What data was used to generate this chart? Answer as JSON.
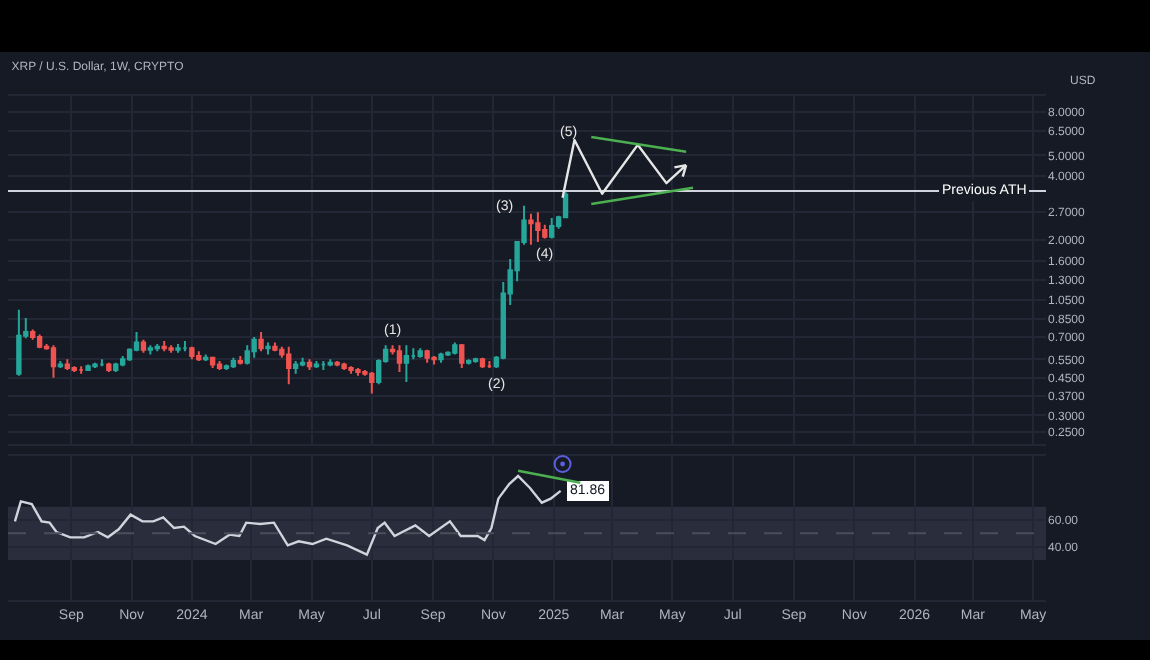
{
  "chart_data": [
    {
      "type": "candlestick",
      "title": "XRP / U.S. Dollar, 1W, CRYPTO",
      "log": true,
      "grid": true,
      "tick_labels": "y",
      "x": [
        "2023-07-10",
        "2023-07-17",
        "2023-07-24",
        "2023-07-31",
        "2023-08-07",
        "2023-08-14",
        "2023-08-21",
        "2023-08-28",
        "2023-09-04",
        "2023-09-11",
        "2023-09-18",
        "2023-09-25",
        "2023-10-02",
        "2023-10-09",
        "2023-10-16",
        "2023-10-23",
        "2023-10-30",
        "2023-11-06",
        "2023-11-13",
        "2023-11-20",
        "2023-11-27",
        "2023-12-04",
        "2023-12-11",
        "2023-12-18",
        "2023-12-25",
        "2024-01-01",
        "2024-01-08",
        "2024-01-15",
        "2024-01-22",
        "2024-01-29",
        "2024-02-05",
        "2024-02-12",
        "2024-02-19",
        "2024-02-26",
        "2024-03-04",
        "2024-03-11",
        "2024-03-18",
        "2024-03-25",
        "2024-04-01",
        "2024-04-08",
        "2024-04-15",
        "2024-04-22",
        "2024-04-29",
        "2024-05-06",
        "2024-05-13",
        "2024-05-20",
        "2024-05-27",
        "2024-06-03",
        "2024-06-10",
        "2024-06-17",
        "2024-06-24",
        "2024-07-01",
        "2024-07-08",
        "2024-07-15",
        "2024-07-22",
        "2024-07-29",
        "2024-08-05",
        "2024-08-12",
        "2024-08-19",
        "2024-08-26",
        "2024-09-02",
        "2024-09-09",
        "2024-09-16",
        "2024-09-23",
        "2024-09-30",
        "2024-10-07",
        "2024-10-14",
        "2024-10-21",
        "2024-10-28",
        "2024-11-04",
        "2024-11-11",
        "2024-11-18",
        "2024-11-25",
        "2024-12-02",
        "2024-12-09",
        "2024-12-16",
        "2024-12-23",
        "2024-12-30",
        "2025-01-06",
        "2025-01-13"
      ],
      "xticks": [
        {
          "value": "2023-09-01",
          "label": null
        },
        {
          "value": "2023-11-01",
          "label": null
        },
        {
          "value": "2024-01-01",
          "label": null
        },
        {
          "value": "2024-03-01",
          "label": null
        },
        {
          "value": "2024-05-01",
          "label": null
        },
        {
          "value": "2024-07-01",
          "label": null
        },
        {
          "value": "2024-09-01",
          "label": null
        },
        {
          "value": "2024-11-01",
          "label": null
        },
        {
          "value": "2025-01-01",
          "label": null
        },
        {
          "value": "2025-03-01",
          "label": null
        },
        {
          "value": "2025-05-01",
          "label": null
        },
        {
          "value": "2025-07-01",
          "label": null
        },
        {
          "value": "2025-09-01",
          "label": null
        },
        {
          "value": "2025-11-01",
          "label": null
        },
        {
          "value": "2026-01-01",
          "label": null
        },
        {
          "value": "2026-03-01",
          "label": null
        },
        {
          "value": "2026-05-01",
          "label": null
        }
      ],
      "ohlc": [
        [
          0.47,
          0.94,
          0.46,
          0.71
        ],
        [
          0.71,
          0.86,
          0.69,
          0.74
        ],
        [
          0.74,
          0.76,
          0.68,
          0.7
        ],
        [
          0.7,
          0.72,
          0.62,
          0.63
        ],
        [
          0.63,
          0.65,
          0.61,
          0.62
        ],
        [
          0.62,
          0.64,
          0.45,
          0.51
        ],
        [
          0.51,
          0.54,
          0.5,
          0.52
        ],
        [
          0.52,
          0.55,
          0.49,
          0.5
        ],
        [
          0.5,
          0.51,
          0.48,
          0.49
        ],
        [
          0.49,
          0.51,
          0.47,
          0.49
        ],
        [
          0.49,
          0.52,
          0.49,
          0.51
        ],
        [
          0.51,
          0.53,
          0.5,
          0.52
        ],
        [
          0.52,
          0.55,
          0.51,
          0.52
        ],
        [
          0.52,
          0.53,
          0.48,
          0.49
        ],
        [
          0.49,
          0.53,
          0.48,
          0.52
        ],
        [
          0.52,
          0.57,
          0.51,
          0.55
        ],
        [
          0.55,
          0.62,
          0.54,
          0.61
        ],
        [
          0.61,
          0.74,
          0.6,
          0.66
        ],
        [
          0.66,
          0.68,
          0.59,
          0.61
        ],
        [
          0.61,
          0.64,
          0.58,
          0.62
        ],
        [
          0.62,
          0.65,
          0.6,
          0.63
        ],
        [
          0.63,
          0.67,
          0.6,
          0.62
        ],
        [
          0.62,
          0.64,
          0.59,
          0.61
        ],
        [
          0.61,
          0.65,
          0.59,
          0.62
        ],
        [
          0.62,
          0.67,
          0.6,
          0.62
        ],
        [
          0.62,
          0.63,
          0.55,
          0.57
        ],
        [
          0.57,
          0.6,
          0.54,
          0.55
        ],
        [
          0.55,
          0.58,
          0.54,
          0.56
        ],
        [
          0.56,
          0.56,
          0.5,
          0.52
        ],
        [
          0.52,
          0.54,
          0.49,
          0.5
        ],
        [
          0.5,
          0.52,
          0.49,
          0.51
        ],
        [
          0.51,
          0.56,
          0.5,
          0.54
        ],
        [
          0.54,
          0.57,
          0.52,
          0.53
        ],
        [
          0.53,
          0.64,
          0.52,
          0.6
        ],
        [
          0.6,
          0.7,
          0.56,
          0.68
        ],
        [
          0.68,
          0.74,
          0.6,
          0.62
        ],
        [
          0.62,
          0.66,
          0.58,
          0.63
        ],
        [
          0.63,
          0.66,
          0.6,
          0.61
        ],
        [
          0.61,
          0.63,
          0.56,
          0.58
        ],
        [
          0.58,
          0.63,
          0.42,
          0.5
        ],
        [
          0.5,
          0.54,
          0.47,
          0.52
        ],
        [
          0.52,
          0.56,
          0.51,
          0.53
        ],
        [
          0.53,
          0.55,
          0.49,
          0.51
        ],
        [
          0.51,
          0.54,
          0.5,
          0.52
        ],
        [
          0.52,
          0.54,
          0.49,
          0.52
        ],
        [
          0.52,
          0.55,
          0.51,
          0.53
        ],
        [
          0.53,
          0.54,
          0.51,
          0.52
        ],
        [
          0.52,
          0.53,
          0.49,
          0.5
        ],
        [
          0.5,
          0.51,
          0.47,
          0.49
        ],
        [
          0.49,
          0.5,
          0.46,
          0.48
        ],
        [
          0.48,
          0.49,
          0.46,
          0.47
        ],
        [
          0.47,
          0.48,
          0.38,
          0.43
        ],
        [
          0.43,
          0.55,
          0.42,
          0.54
        ],
        [
          0.54,
          0.64,
          0.53,
          0.61
        ],
        [
          0.61,
          0.64,
          0.58,
          0.6
        ],
        [
          0.6,
          0.64,
          0.48,
          0.53
        ],
        [
          0.53,
          0.64,
          0.43,
          0.57
        ],
        [
          0.57,
          0.62,
          0.55,
          0.57
        ],
        [
          0.57,
          0.62,
          0.56,
          0.6
        ],
        [
          0.6,
          0.61,
          0.53,
          0.56
        ],
        [
          0.56,
          0.57,
          0.52,
          0.55
        ],
        [
          0.55,
          0.59,
          0.53,
          0.58
        ],
        [
          0.58,
          0.6,
          0.57,
          0.59
        ],
        [
          0.59,
          0.66,
          0.58,
          0.64
        ],
        [
          0.64,
          0.65,
          0.5,
          0.53
        ],
        [
          0.53,
          0.55,
          0.52,
          0.54
        ],
        [
          0.54,
          0.56,
          0.53,
          0.55
        ],
        [
          0.55,
          0.56,
          0.5,
          0.51
        ],
        [
          0.51,
          0.54,
          0.5,
          0.51
        ],
        [
          0.51,
          0.57,
          0.5,
          0.56
        ],
        [
          0.56,
          1.27,
          0.55,
          1.12
        ],
        [
          1.12,
          1.63,
          0.99,
          1.44
        ],
        [
          1.44,
          1.98,
          1.28,
          1.96
        ],
        [
          1.96,
          2.9,
          1.9,
          2.47
        ],
        [
          2.47,
          2.66,
          1.9,
          2.4
        ],
        [
          2.4,
          2.7,
          1.96,
          2.23
        ],
        [
          2.23,
          2.36,
          2.03,
          2.07
        ],
        [
          2.07,
          2.54,
          2.03,
          2.33
        ],
        [
          2.33,
          2.6,
          2.26,
          2.56
        ],
        [
          2.56,
          3.4,
          2.53,
          3.27
        ]
      ],
      "xlim": [
        "2023-06-29",
        "2026-05-14"
      ],
      "ylim": [
        0.22,
        9.5
      ],
      "yticks": [
        {
          "value": 8,
          "label": "8.0000"
        },
        {
          "value": 6.5,
          "label": "6.5000"
        },
        {
          "value": 5,
          "label": "5.0000"
        },
        {
          "value": 4,
          "label": "4.0000"
        },
        {
          "value": 2.7,
          "label": "2.7000"
        },
        {
          "value": 2,
          "label": "2.0000"
        },
        {
          "value": 1.6,
          "label": "1.6000"
        },
        {
          "value": 1.3,
          "label": "1.3000"
        },
        {
          "value": 1.05,
          "label": "1.0500"
        },
        {
          "value": 0.85,
          "label": "0.8500"
        },
        {
          "value": 0.7,
          "label": "0.7000"
        },
        {
          "value": 0.55,
          "label": "0.5500"
        },
        {
          "value": 0.45,
          "label": "0.4500"
        },
        {
          "value": 0.37,
          "label": "0.3700"
        },
        {
          "value": 0.3,
          "label": "0.3000"
        },
        {
          "value": 0.25,
          "label": "0.2500"
        }
      ],
      "ref_lines": [
        {
          "axis": "y",
          "value": 3.4,
          "label": "Previous ATH",
          "color": "#d1d4dc"
        }
      ],
      "annotations": [
        "USD",
        {
          "text": "(1)",
          "x": "2024-07-22",
          "y": 0.64
        },
        {
          "text": "(2)",
          "x": "2024-11-04",
          "y": 0.5
        },
        {
          "text": "(3)",
          "x": "2024-12-02",
          "y": 2.9
        },
        {
          "text": "(4)",
          "x": "2024-12-23",
          "y": 2.03
        },
        "(5)"
      ]
    },
    {
      "type": "line",
      "grid": true,
      "series": [
        {
          "color": "#d1d4dc",
          "x": [
            "2023-07-06",
            "2023-07-12",
            "2023-07-23",
            "2023-08-02",
            "2023-08-10",
            "2023-08-17",
            "2023-08-31",
            "2023-09-14",
            "2023-09-28",
            "2023-10-08",
            "2023-10-19",
            "2023-10-31",
            "2023-11-12",
            "2023-11-23",
            "2023-12-03",
            "2023-12-14",
            "2023-12-24",
            "2024-01-04",
            "2024-01-25",
            "2024-02-08",
            "2024-02-18",
            "2024-02-25",
            "2024-03-10",
            "2024-03-24",
            "2024-04-07",
            "2024-04-18",
            "2024-05-02",
            "2024-05-16",
            "2024-06-06",
            "2024-06-26",
            "2024-07-07",
            "2024-07-14",
            "2024-07-24",
            "2024-08-14",
            "2024-08-28",
            "2024-09-18",
            "2024-09-29",
            "2024-10-16",
            "2024-10-23",
            "2024-10-30",
            "2024-11-06",
            "2024-11-17",
            "2024-11-26",
            "2024-12-08",
            "2024-12-20",
            "2024-12-29",
            "2025-01-08"
          ],
          "values": [
            59,
            74,
            72,
            59,
            58,
            51,
            47,
            47,
            51,
            47,
            53,
            64,
            59,
            59,
            62,
            54,
            55,
            48,
            42,
            49,
            48,
            58,
            57,
            58,
            41,
            44,
            42,
            46,
            41,
            34,
            54,
            58,
            48,
            56,
            48,
            59,
            48,
            48,
            45,
            54,
            76,
            87,
            93,
            84,
            73,
            76,
            81.86
          ],
          "value_labels": [
            null,
            null,
            null,
            null,
            null,
            null,
            null,
            null,
            null,
            null,
            null,
            null,
            null,
            null,
            null,
            null,
            null,
            null,
            null,
            null,
            null,
            null,
            null,
            null,
            null,
            null,
            null,
            null,
            null,
            null,
            null,
            null,
            null,
            null,
            null,
            null,
            null,
            null,
            null,
            null,
            null,
            null,
            null,
            null,
            null,
            null,
            "81.86"
          ]
        }
      ],
      "xlim": [
        "2023-06-29",
        "2026-05-14"
      ],
      "xticks": [
        {
          "value": "2023-09-01",
          "label": "Sep"
        },
        {
          "value": "2023-11-01",
          "label": "Nov"
        },
        {
          "value": "2024-01-01",
          "label": "2024"
        },
        {
          "value": "2024-03-01",
          "label": "Mar"
        },
        {
          "value": "2024-05-01",
          "label": "May"
        },
        {
          "value": "2024-07-01",
          "label": "Jul"
        },
        {
          "value": "2024-09-01",
          "label": "Sep"
        },
        {
          "value": "2024-11-01",
          "label": "Nov"
        },
        {
          "value": "2025-01-01",
          "label": "2025"
        },
        {
          "value": "2025-03-01",
          "label": "Mar"
        },
        {
          "value": "2025-05-01",
          "label": "May"
        },
        {
          "value": "2025-07-01",
          "label": "Jul"
        },
        {
          "value": "2025-09-01",
          "label": "Sep"
        },
        {
          "value": "2025-11-01",
          "label": "Nov"
        },
        {
          "value": "2026-01-01",
          "label": "2026"
        },
        {
          "value": "2026-03-01",
          "label": "Mar"
        },
        {
          "value": "2026-05-01",
          "label": "May"
        }
      ],
      "ylim": [
        0,
        108
      ],
      "yticks": [
        {
          "value": 60,
          "label": "60.00"
        },
        {
          "value": 40,
          "label": "40.00"
        }
      ],
      "bands": [
        {
          "axis": "y",
          "from": 30,
          "to": 70,
          "color": "#2a2e3c"
        }
      ],
      "ref_lines": [
        {
          "axis": "y",
          "value": 50,
          "color": "#4a4e5c",
          "line_style": "dashed"
        }
      ]
    }
  ]
}
